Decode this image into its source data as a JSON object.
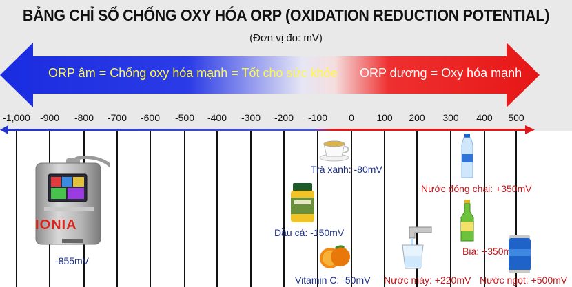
{
  "header": {
    "title": "BẢNG CHỈ SỐ CHỐNG OXY HÓA ORP (OXIDATION REDUCTION POTENTIAL)",
    "subtitle": "(Đơn vị đo: mV)"
  },
  "banner": {
    "negative_text": "ORP âm = Chống oxy hóa mạnh = Tốt cho sức khỏe",
    "positive_text": "ORP dương = Oxy hóa mạnh",
    "colors": {
      "negative": "#1f35d8",
      "positive": "#ea1b1b",
      "axis_negative": "#2233cc",
      "axis_positive": "#e31919"
    }
  },
  "scale": {
    "ticks": [
      "-1,000",
      "-900",
      "-800",
      "-700",
      "-600",
      "-500",
      "-400",
      "-300",
      "-200",
      "-100",
      "0",
      "100",
      "200",
      "300",
      "400",
      "500"
    ]
  },
  "items": [
    {
      "id": "ionia",
      "brand": "IONIA",
      "label": "-855mV",
      "icon": "water-ionizer-icon"
    },
    {
      "id": "tea",
      "label": "Trà xanh: -80mV",
      "icon": "tea-cup-icon"
    },
    {
      "id": "fish-oil",
      "label": "Dầu cá: -150mV",
      "icon": "supplement-bottle-icon"
    },
    {
      "id": "vitamin-c",
      "label": "Vitamin C: -50mV",
      "icon": "orange-icon"
    },
    {
      "id": "bottled-water",
      "label": "Nước đóng chai: +350mV",
      "icon": "water-bottle-icon"
    },
    {
      "id": "beer",
      "label": "Bia: +350mV",
      "icon": "beer-bottle-icon"
    },
    {
      "id": "tap-water",
      "label": "Nước máy: +220mV",
      "icon": "tap-water-icon"
    },
    {
      "id": "soda",
      "label": "Nước ngọt: +500mV",
      "icon": "soda-can-icon"
    }
  ]
}
